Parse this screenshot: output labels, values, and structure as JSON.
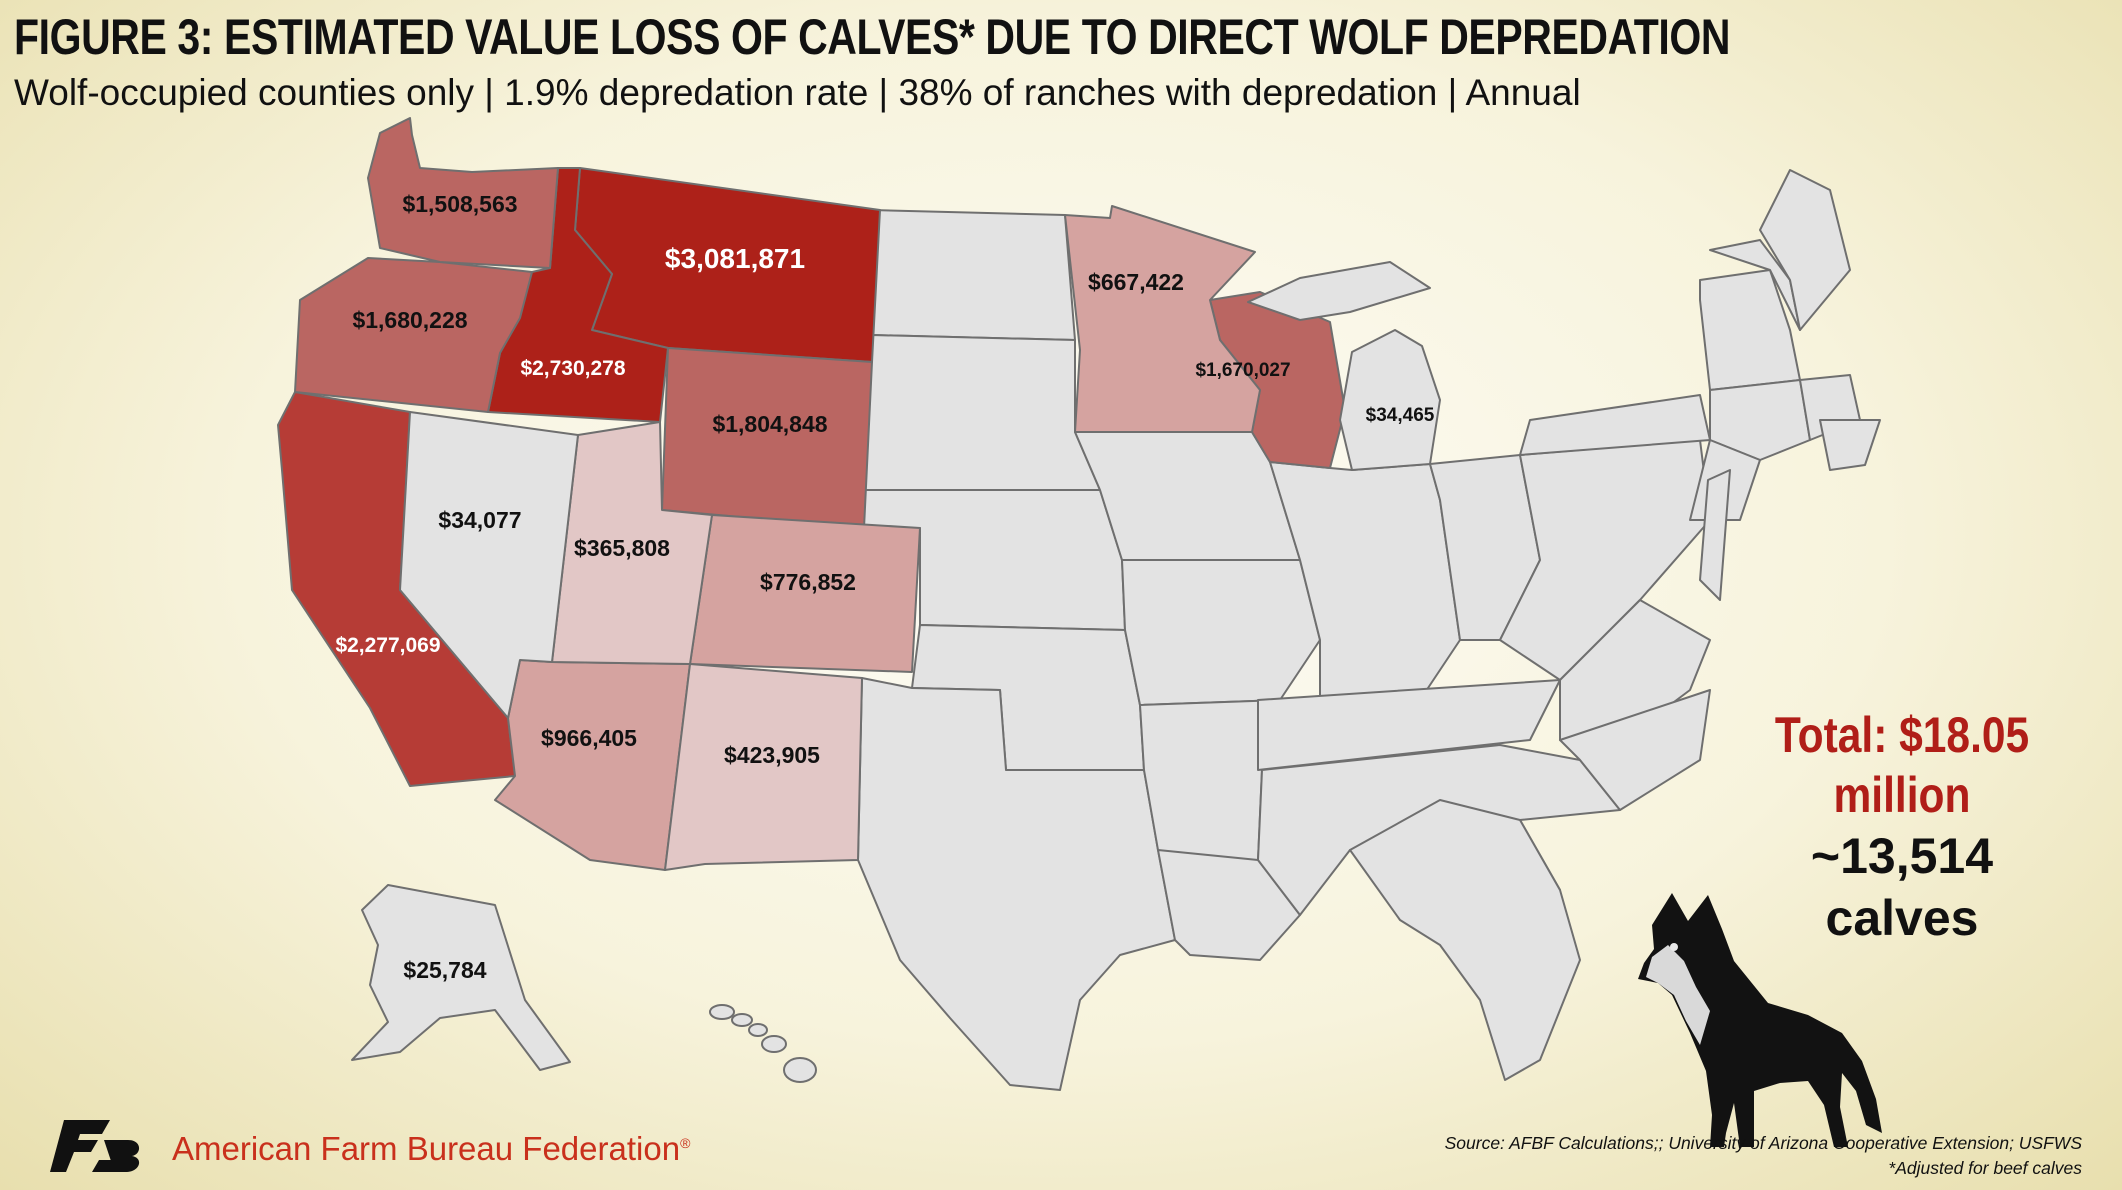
{
  "title": "FIGURE 3: ESTIMATED VALUE LOSS OF CALVES* DUE TO DIRECT WOLF DEPREDATION",
  "subtitle": "Wolf-occupied counties only | 1.9% depredation rate | 38% of ranches with depredation | Annual",
  "colors": {
    "dark_red": "#ad2119",
    "red": "#b63c36",
    "medium_red": "#ba6662",
    "light_red": "#d5a3a0",
    "pale_red": "#e2c7c6",
    "no_data_gray": "#e3e3e3",
    "total_red": "#b01e18",
    "org_orange": "#c9301c"
  },
  "map": {
    "states": [
      {
        "state": "Montana",
        "value": "$3,081,871",
        "value_num": 3081871,
        "fill": "dark_red"
      },
      {
        "state": "Idaho",
        "value": "$2,730,278",
        "value_num": 2730278,
        "fill": "dark_red"
      },
      {
        "state": "California",
        "value": "$2,277,069",
        "value_num": 2277069,
        "fill": "red"
      },
      {
        "state": "Wyoming",
        "value": "$1,804,848",
        "value_num": 1804848,
        "fill": "medium_red"
      },
      {
        "state": "Oregon",
        "value": "$1,680,228",
        "value_num": 1680228,
        "fill": "medium_red"
      },
      {
        "state": "Wisconsin",
        "value": "$1,670,027",
        "value_num": 1670027,
        "fill": "medium_red"
      },
      {
        "state": "Washington",
        "value": "$1,508,563",
        "value_num": 1508563,
        "fill": "medium_red"
      },
      {
        "state": "Arizona",
        "value": "$966,405",
        "value_num": 966405,
        "fill": "light_red"
      },
      {
        "state": "Colorado",
        "value": "$776,852",
        "value_num": 776852,
        "fill": "light_red"
      },
      {
        "state": "Minnesota",
        "value": "$667,422",
        "value_num": 667422,
        "fill": "light_red"
      },
      {
        "state": "New Mexico",
        "value": "$423,905",
        "value_num": 423905,
        "fill": "pale_red"
      },
      {
        "state": "Utah",
        "value": "$365,808",
        "value_num": 365808,
        "fill": "pale_red"
      },
      {
        "state": "Michigan",
        "value": "$34,465",
        "value_num": 34465,
        "fill": "no_data_gray"
      },
      {
        "state": "Nevada",
        "value": "$34,077",
        "value_num": 34077,
        "fill": "no_data_gray"
      },
      {
        "state": "Alaska",
        "value": "$25,784",
        "value_num": 25784,
        "fill": "no_data_gray"
      }
    ]
  },
  "total": {
    "amount": "Total: $18.05 million",
    "calves": "~13,514 calves"
  },
  "icons": {
    "logo": "fb-logo-icon",
    "wolf": "wolf-icon"
  },
  "footer": {
    "org_name": "American Farm Bureau Federation",
    "org_mark": "®",
    "source": "Source: AFBF Calculations;; University of Arizona Cooperative Extension; USFWS",
    "footnote": "*Adjusted for beef calves"
  }
}
